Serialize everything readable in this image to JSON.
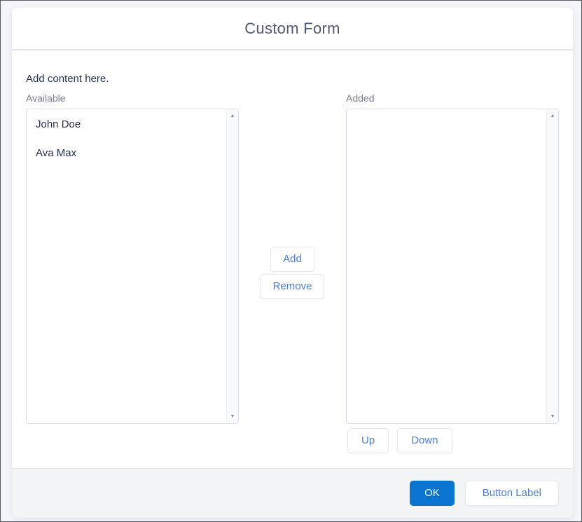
{
  "modal": {
    "title": "Custom Form",
    "intro": "Add content here.",
    "dual_listbox": {
      "available_label": "Available",
      "added_label": "Added",
      "available_items": [
        "John Doe",
        "Ava Max"
      ],
      "added_items": [],
      "add_label": "Add",
      "remove_label": "Remove",
      "up_label": "Up",
      "down_label": "Down"
    },
    "footer": {
      "ok_label": "OK",
      "secondary_label": "Button Label"
    }
  },
  "icons": {
    "scroll_up_glyph": "▲",
    "scroll_down_glyph": "▼"
  },
  "colors": {
    "primary_button_bg": "#0b74d1",
    "button_text_blue": "#4c80da",
    "page_bg": "#f4f5f8",
    "footer_bg": "#f3f4f6",
    "header_divider": "#dfe3ee"
  }
}
